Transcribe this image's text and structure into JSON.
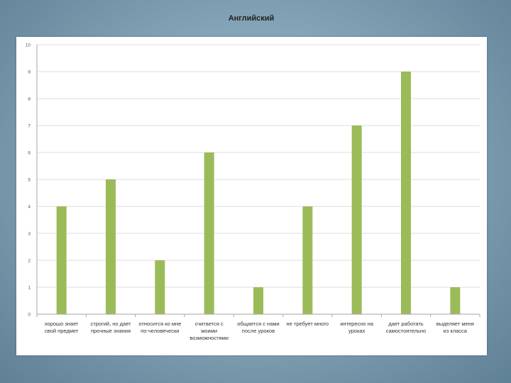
{
  "chart_data": {
    "type": "bar",
    "title": "Английский",
    "xlabel": "",
    "ylabel": "",
    "ylim": [
      0,
      10
    ],
    "yticks": [
      "0",
      "1",
      "2",
      "3",
      "4",
      "5",
      "6",
      "7",
      "8",
      "9",
      "10"
    ],
    "grid": true,
    "legend": "none",
    "bar_color": "#9bbb59",
    "categories": [
      [
        "хорошо знает",
        "свой предмет"
      ],
      [
        "строгий, но дает",
        "прочные знания"
      ],
      [
        "относится ко мне",
        "по-человечески"
      ],
      [
        "считается с",
        "моими",
        "возможностями"
      ],
      [
        "общается с нами",
        "после уроков"
      ],
      [
        "не требует много"
      ],
      [
        "интересно на",
        "уроках"
      ],
      [
        "дает работать",
        "самостоятельно"
      ],
      [
        "выделяет меня",
        "из класса"
      ]
    ],
    "values": [
      4,
      5,
      2,
      6,
      1,
      4,
      7,
      9,
      1
    ]
  }
}
